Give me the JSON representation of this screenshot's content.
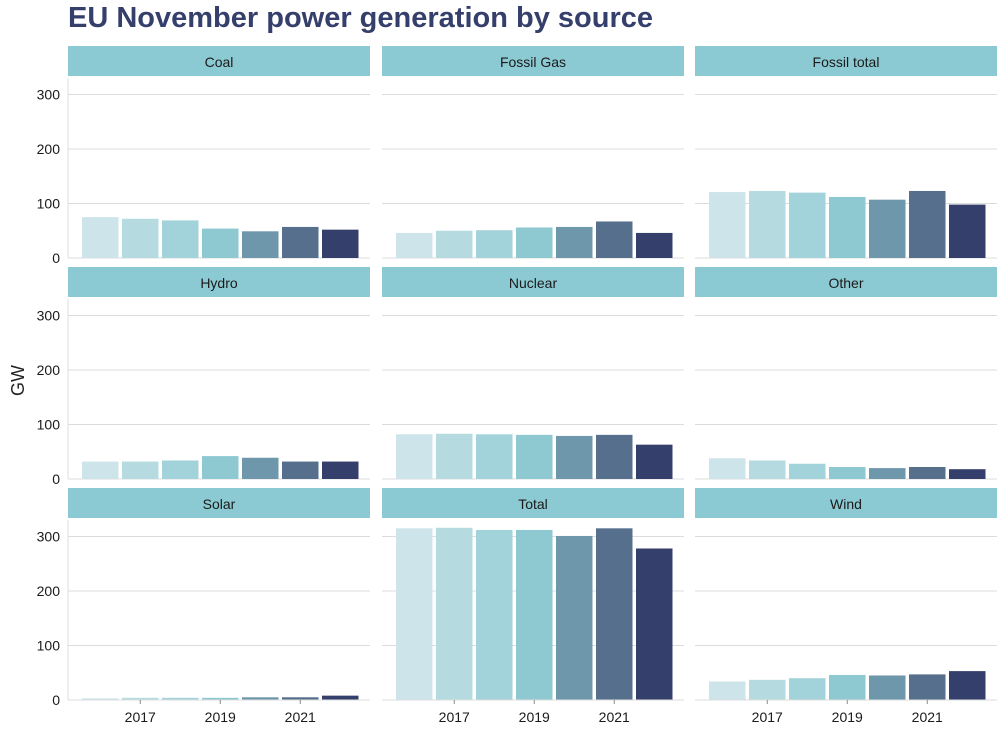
{
  "chart_data": {
    "type": "bar",
    "title": "EU November power generation by source",
    "ylabel": "GW",
    "xlabel": "",
    "ylim": [
      0,
      330
    ],
    "yticks": [
      0,
      100,
      200,
      300
    ],
    "x": [
      2016,
      2017,
      2018,
      2019,
      2020,
      2021,
      2022
    ],
    "xtick_labels": [
      "2017",
      "2019",
      "2021"
    ],
    "colors": [
      "#cde5ea",
      "#b5dbe1",
      "#a3d3da",
      "#8ec9d2",
      "#6e97ac",
      "#556f8c",
      "#353f6b"
    ],
    "strip_color": "#8ccad3",
    "panels": [
      {
        "name": "Coal",
        "values": [
          75,
          72,
          69,
          54,
          49,
          57,
          52
        ]
      },
      {
        "name": "Fossil Gas",
        "values": [
          46,
          50,
          51,
          56,
          57,
          67,
          46
        ]
      },
      {
        "name": "Fossil total",
        "values": [
          121,
          123,
          120,
          112,
          107,
          123,
          98
        ]
      },
      {
        "name": "Hydro",
        "values": [
          32,
          32,
          34,
          42,
          39,
          32,
          32
        ]
      },
      {
        "name": "Nuclear",
        "values": [
          82,
          83,
          82,
          81,
          79,
          81,
          63
        ]
      },
      {
        "name": "Other",
        "values": [
          38,
          34,
          28,
          22,
          20,
          22,
          18
        ]
      },
      {
        "name": "Solar",
        "values": [
          3,
          4,
          4,
          4,
          5,
          5,
          8
        ]
      },
      {
        "name": "Total",
        "values": [
          315,
          316,
          312,
          312,
          301,
          315,
          278
        ]
      },
      {
        "name": "Wind",
        "values": [
          34,
          37,
          40,
          46,
          45,
          47,
          53
        ]
      }
    ]
  }
}
